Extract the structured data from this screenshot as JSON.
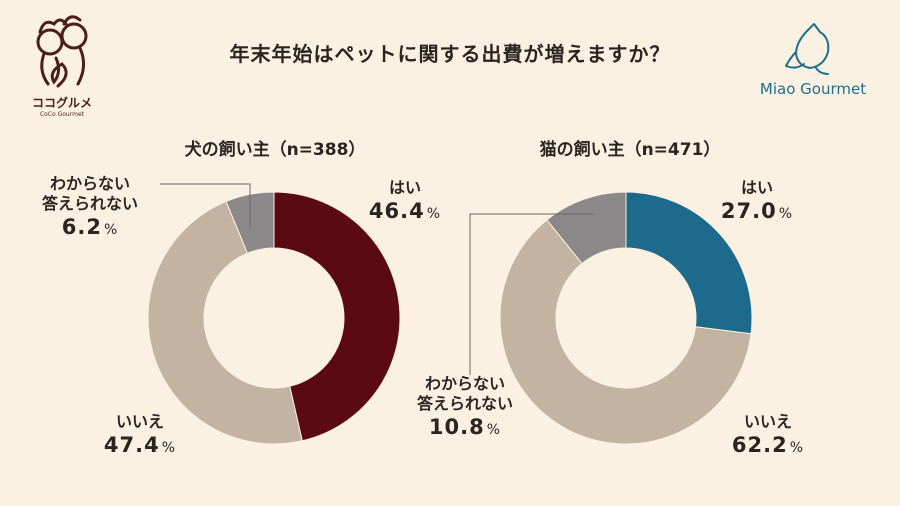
{
  "title": "年末年始はペットに関する出費が増えますか？",
  "logos": {
    "left_name": "ココグルメ",
    "left_sub": "CoCo Gourmet",
    "right_name": "Miao Gourmet"
  },
  "chart_data": [
    {
      "type": "pie",
      "title": "犬の飼い主（n=388）",
      "categories": [
        "はい",
        "いいえ",
        "わからない答えられない"
      ],
      "values": [
        46.4,
        47.4,
        6.2
      ],
      "colors": [
        "#5a0a10",
        "#c3b3a3",
        "#8a8888"
      ],
      "labels": [
        {
          "text": "はい",
          "value": "46.4",
          "unit": "%"
        },
        {
          "text": "いいえ",
          "value": "47.4",
          "unit": "%"
        },
        {
          "text1": "わからない",
          "text2": "答えられない",
          "value": "6.2",
          "unit": "%"
        }
      ]
    },
    {
      "type": "pie",
      "title": "猫の飼い主（n=471）",
      "categories": [
        "はい",
        "いいえ",
        "わからない答えられない"
      ],
      "values": [
        27.0,
        62.2,
        10.8
      ],
      "colors": [
        "#1c6a8c",
        "#c3b3a3",
        "#8a8888"
      ],
      "labels": [
        {
          "text": "はい",
          "value": "27.0",
          "unit": "%"
        },
        {
          "text": "いいえ",
          "value": "62.2",
          "unit": "%"
        },
        {
          "text1": "わからない",
          "text2": "答えられない",
          "value": "10.8",
          "unit": "%"
        }
      ]
    }
  ]
}
